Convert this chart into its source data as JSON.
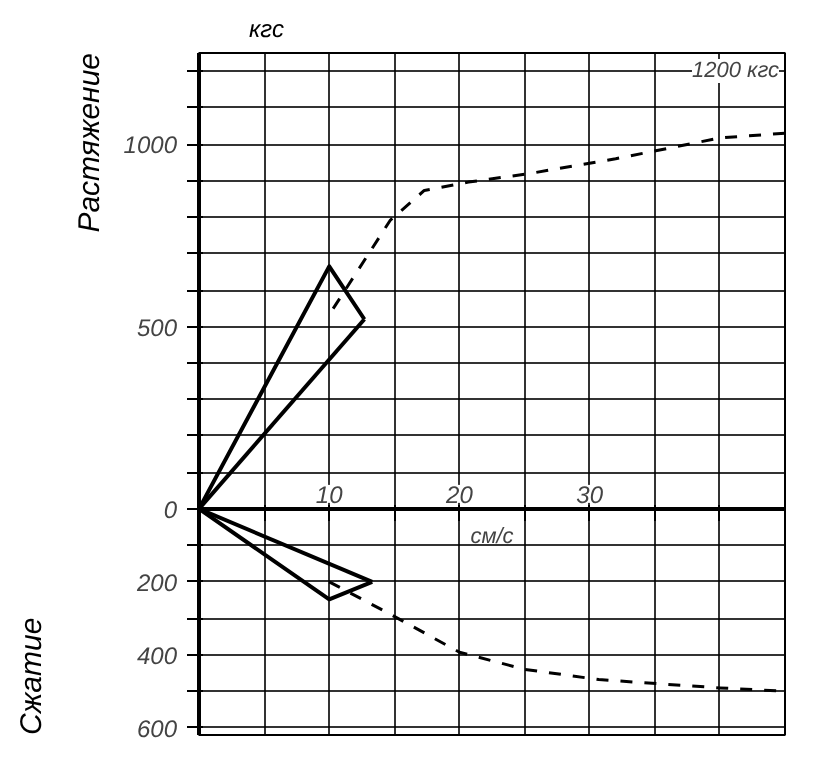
{
  "chart_data": {
    "type": "line",
    "ylabel": "кгс",
    "xlabel": "см/с",
    "xlim": [
      0,
      45
    ],
    "ylim": [
      -620,
      1250
    ],
    "xticks": [
      {
        "value": 0,
        "label": null
      },
      {
        "value": 5,
        "label": null
      },
      10,
      {
        "value": 15,
        "label": null
      },
      20,
      {
        "value": 25,
        "label": null
      },
      30,
      {
        "value": 35,
        "label": null
      },
      {
        "value": 40,
        "label": null
      },
      {
        "value": 45,
        "label": null
      }
    ],
    "yticks": [
      {
        "value": -600,
        "label": "600"
      },
      {
        "value": -500,
        "label": null
      },
      {
        "value": -400,
        "label": "400"
      },
      {
        "value": -300,
        "label": null
      },
      {
        "value": -200,
        "label": "200"
      },
      {
        "value": -100,
        "label": null
      },
      0,
      {
        "value": 100,
        "label": null
      },
      {
        "value": 200,
        "label": null
      },
      {
        "value": 300,
        "label": null
      },
      {
        "value": 400,
        "label": null
      },
      500,
      {
        "value": 600,
        "label": null
      },
      {
        "value": 700,
        "label": null
      },
      {
        "value": 800,
        "label": null
      },
      {
        "value": 900,
        "label": null
      },
      1000,
      {
        "value": 1100,
        "label": null
      },
      {
        "value": 1200,
        "label": null
      }
    ],
    "grid": true,
    "series": [
      {
        "color": "#000000",
        "line_style": "dashed",
        "x": [
          10.3,
          14.7,
          17.3,
          20.7,
          25.3,
          32,
          40,
          45
        ],
        "values": [
          549,
          792,
          873,
          896,
          919,
          960,
          1017,
          1030
        ]
      },
      {
        "color": "#000000",
        "line_style": "dashed",
        "x": [
          10,
          14.7,
          20,
          25,
          30.7,
          40,
          45
        ],
        "values": [
          -200,
          -289,
          -393,
          -440,
          -468,
          -491,
          -500
        ]
      },
      {
        "color": "#000000",
        "line_style": "solid",
        "x": [
          0,
          10,
          12.7
        ],
        "values": [
          0,
          665,
          520
        ]
      },
      {
        "color": "#000000",
        "line_style": "solid",
        "x": [
          0,
          12.7
        ],
        "values": [
          0,
          520
        ]
      },
      {
        "color": "#000000",
        "line_style": "solid",
        "x": [
          0,
          10,
          13.3
        ],
        "values": [
          0,
          -248,
          -200
        ]
      },
      {
        "color": "#000000",
        "line_style": "solid",
        "x": [
          0,
          13.3
        ],
        "values": [
          0,
          -200
        ]
      }
    ],
    "annotations": [
      "Растяжение",
      "Сжатие",
      "1200 кгс"
    ]
  }
}
